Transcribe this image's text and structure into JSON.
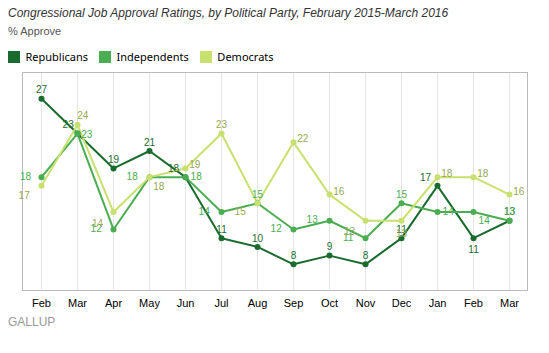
{
  "chart_data": {
    "type": "line",
    "title": "Congressional Job Approval Ratings, by Political Party, February 2015-March 2016",
    "ylabel": "% Approve",
    "categories": [
      "Feb",
      "Mar",
      "Apr",
      "May",
      "Jun",
      "Jul",
      "Aug",
      "Sep",
      "Oct",
      "Nov",
      "Dec",
      "Jan",
      "Feb",
      "Mar"
    ],
    "series": [
      {
        "name": "Republicans",
        "color": "#1a6b2e",
        "values": [
          27,
          23,
          19,
          21,
          18,
          11,
          10,
          8,
          9,
          8,
          11,
          17,
          11,
          13
        ]
      },
      {
        "name": "Independents",
        "color": "#4aad52",
        "values": [
          18,
          23,
          12,
          18,
          18,
          14,
          15,
          12,
          13,
          11,
          15,
          14,
          14,
          13
        ]
      },
      {
        "name": "Democrats",
        "color": "#c8e06e",
        "values": [
          17,
          24,
          14,
          18,
          19,
          23,
          15,
          22,
          16,
          13,
          13,
          18,
          18,
          16
        ]
      }
    ],
    "ylim": [
      5,
      30
    ],
    "grid": true,
    "legend": "top-left",
    "data_labels": true,
    "tick_labels": "x",
    "marker": "circle",
    "annotations": [
      "GALLUP"
    ]
  }
}
